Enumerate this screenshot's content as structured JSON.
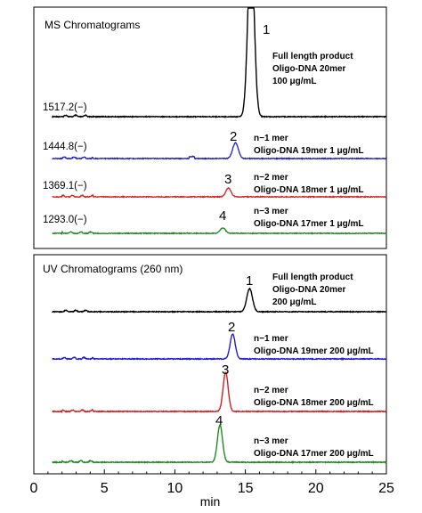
{
  "chart_data": [
    {
      "type": "line",
      "title": "MS Chromatograms",
      "xlabel": "min",
      "xlim": [
        0,
        25
      ],
      "x_ticks": [
        "0",
        "5",
        "10",
        "15",
        "20",
        "25"
      ],
      "grid": false,
      "traces": [
        {
          "ion_label": "1517.2(−)",
          "peak_number": "1",
          "annotation_lines": [
            "Full length product",
            "Oligo-DNA 20mer",
            "100 μg/mL"
          ],
          "color": "#000000",
          "peak_time": 15.4,
          "relative_height": 1.0,
          "peak_width": 0.22,
          "clipped": true
        },
        {
          "ion_label": "1444.8(−)",
          "peak_number": "2",
          "annotation_lines": [
            "n−1 mer",
            "Oligo-DNA 19mer 1 μg/mL"
          ],
          "color": "#1f1fcc",
          "peak_time": 14.3,
          "relative_height": 0.14,
          "peak_width": 0.2,
          "clipped": false
        },
        {
          "ion_label": "1369.1(−)",
          "peak_number": "3",
          "annotation_lines": [
            "n−2 mer",
            "Oligo-DNA 18mer 1 μg/mL"
          ],
          "color": "#d42020",
          "peak_time": 13.8,
          "relative_height": 0.08,
          "peak_width": 0.18,
          "clipped": false
        },
        {
          "ion_label": "1293.0(−)",
          "peak_number": "4",
          "annotation_lines": [
            "n−3 mer",
            "Oligo-DNA 17mer 1 μg/mL"
          ],
          "color": "#1f8a1f",
          "peak_time": 13.4,
          "relative_height": 0.05,
          "peak_width": 0.18,
          "clipped": false
        }
      ]
    },
    {
      "type": "line",
      "title": "UV Chromatograms (260 nm)",
      "xlabel": "min",
      "xlim": [
        0,
        25
      ],
      "x_ticks": [
        "0",
        "5",
        "10",
        "15",
        "20",
        "25"
      ],
      "grid": false,
      "traces": [
        {
          "ion_label": "",
          "peak_number": "1",
          "annotation_lines": [
            "Full length product",
            "Oligo-DNA 20mer",
            "200 μg/mL"
          ],
          "color": "#000000",
          "peak_time": 15.3,
          "relative_height": 0.55,
          "peak_width": 0.2,
          "clipped": false
        },
        {
          "ion_label": "",
          "peak_number": "2",
          "annotation_lines": [
            "n−1 mer",
            "Oligo-DNA 19mer 200 μg/mL"
          ],
          "color": "#1f1fcc",
          "peak_time": 14.1,
          "relative_height": 0.62,
          "peak_width": 0.18,
          "clipped": false
        },
        {
          "ion_label": "",
          "peak_number": "3",
          "annotation_lines": [
            "n−2 mer",
            "Oligo-DNA 18mer 200 μg/mL"
          ],
          "color": "#d42020",
          "peak_time": 13.6,
          "relative_height": 0.85,
          "peak_width": 0.18,
          "clipped": false
        },
        {
          "ion_label": "",
          "peak_number": "4",
          "annotation_lines": [
            "n−3 mer",
            "Oligo-DNA 17mer 200 μg/mL"
          ],
          "color": "#1f8a1f",
          "peak_time": 13.2,
          "relative_height": 0.9,
          "peak_width": 0.18,
          "clipped": false
        }
      ]
    }
  ]
}
